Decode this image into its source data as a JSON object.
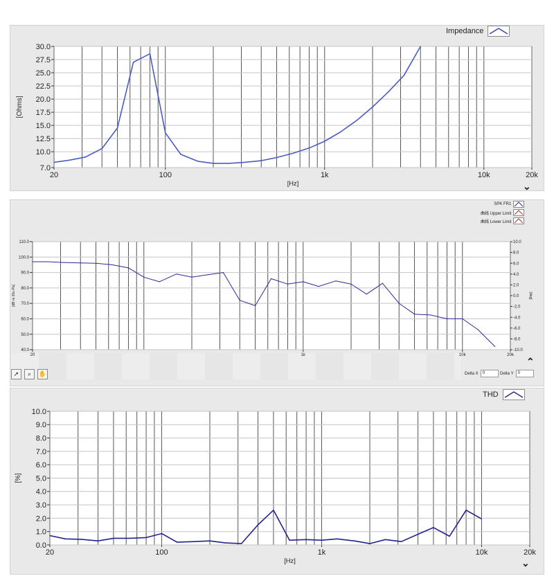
{
  "charts": {
    "impedance": {
      "legend": "Impedance",
      "ylabel": "[Ohms]",
      "xlabel": "[Hz]"
    },
    "spl": {
      "legend": [
        {
          "label": "SPK FR1",
          "color": "#2a2a9a"
        },
        {
          "label": "曲线 Upper Limit",
          "color": "#b03030"
        },
        {
          "label": "曲线 Lower Limit",
          "color": "#b03030"
        }
      ],
      "ylabel": "[dB re 20u Pa]",
      "ylabel_right": "[deg]"
    },
    "thd": {
      "legend": "THD",
      "ylabel": "[%]",
      "xlabel": "[Hz]"
    }
  },
  "toolbar": {
    "delta_x_label": "Delta X",
    "delta_x_value": "0",
    "delta_y_label": "Delta Y",
    "delta_y_value": "0"
  },
  "icons": {
    "panel_icon": "head-profile-icon",
    "collapse": "double-chevron-down-icon",
    "expand": "double-chevron-up-icon",
    "tools": [
      "arrow-cursor-icon",
      "zoom-icon",
      "pan-hand-icon"
    ]
  },
  "colors": {
    "plot_bg": "#ffffff",
    "panel_bg": "#e9e9e9",
    "line": "#3a46a8",
    "grid": "#555555"
  },
  "chart_data": [
    {
      "type": "line",
      "x_scale": "log",
      "xlim": [
        20,
        20000
      ],
      "ylim": [
        7.0,
        30.0
      ],
      "xlabel": "[Hz]",
      "ylabel": "[Ohms]",
      "x_ticks": [
        "20",
        "100",
        "1k",
        "10k",
        "20k"
      ],
      "y_ticks": [
        "30.0",
        "27.5",
        "25.0",
        "22.5",
        "20.0",
        "17.5",
        "15.0",
        "12.5",
        "10.0",
        "7.0"
      ],
      "grid": true,
      "legend": "top-right",
      "series": [
        {
          "name": "Impedance",
          "x": [
            20,
            25,
            31.5,
            40,
            50,
            63,
            80,
            100,
            125,
            160,
            200,
            250,
            315,
            400,
            500,
            630,
            800,
            1000,
            1250,
            1600,
            2000,
            2500,
            3150,
            4000
          ],
          "y": [
            8.0,
            8.4,
            9.0,
            10.6,
            14.5,
            27.0,
            28.6,
            13.6,
            9.5,
            8.2,
            7.8,
            7.8,
            8.0,
            8.3,
            8.9,
            9.7,
            10.7,
            12.0,
            13.7,
            16.0,
            18.5,
            21.3,
            24.5,
            30.0
          ]
        }
      ]
    },
    {
      "type": "line",
      "x_scale": "log",
      "xlim": [
        20,
        20000
      ],
      "ylim": [
        40.0,
        110.0
      ],
      "y2lim": [
        -10.0,
        10.0
      ],
      "ylabel": "[dB re 20u Pa]",
      "y2label": "[deg]",
      "x_ticks": [
        "20",
        "1k",
        "10k",
        "20k"
      ],
      "y_ticks": [
        "110.0",
        "100.0",
        "90.0",
        "80.0",
        "70.0",
        "60.0",
        "50.0",
        "40.0"
      ],
      "y2_ticks": [
        "10.0",
        "8.0",
        "6.0",
        "4.0",
        "2.0",
        "0.0",
        "-2.0",
        "-4.0",
        "-6.0",
        "-8.0",
        "-10.0"
      ],
      "grid": true,
      "legend": "top-right",
      "series": [
        {
          "name": "SPK FR1",
          "x": [
            20,
            25,
            31.5,
            40,
            50,
            63,
            80,
            100,
            125,
            160,
            200,
            250,
            315,
            400,
            500,
            630,
            800,
            1000,
            1250,
            1600,
            2000,
            2500,
            3150,
            4000,
            5000,
            6300,
            8000,
            10000,
            12500,
            16000
          ],
          "y": [
            97,
            97,
            96.5,
            96.2,
            96,
            95,
            93,
            87,
            84,
            89,
            87,
            88.5,
            90,
            72,
            68.5,
            86,
            82.5,
            84,
            81,
            84.5,
            82.5,
            76,
            83,
            70,
            63,
            62.5,
            60,
            60,
            53,
            42
          ]
        }
      ]
    },
    {
      "type": "line",
      "x_scale": "log",
      "xlim": [
        20,
        20000
      ],
      "ylim": [
        0.0,
        10.0
      ],
      "xlabel": "[Hz]",
      "ylabel": "[%]",
      "x_ticks": [
        "20",
        "100",
        "1k",
        "10k",
        "20k"
      ],
      "y_ticks": [
        "10.0",
        "9.0",
        "8.0",
        "7.0",
        "6.0",
        "5.0",
        "4.0",
        "3.0",
        "2.0",
        "1.0",
        "0.0"
      ],
      "grid": true,
      "legend": "top-right",
      "series": [
        {
          "name": "THD",
          "x": [
            20,
            25,
            31.5,
            40,
            50,
            63,
            80,
            100,
            125,
            160,
            200,
            250,
            315,
            400,
            500,
            630,
            800,
            1000,
            1250,
            1600,
            2000,
            2500,
            3150,
            4000,
            5000,
            6300,
            8000,
            10000
          ],
          "y": [
            0.7,
            0.45,
            0.42,
            0.3,
            0.5,
            0.5,
            0.55,
            0.85,
            0.2,
            0.25,
            0.3,
            0.15,
            0.1,
            1.5,
            2.6,
            0.35,
            0.4,
            0.35,
            0.45,
            0.3,
            0.1,
            0.4,
            0.25,
            0.8,
            1.3,
            0.65,
            2.6,
            1.95
          ]
        }
      ]
    }
  ]
}
